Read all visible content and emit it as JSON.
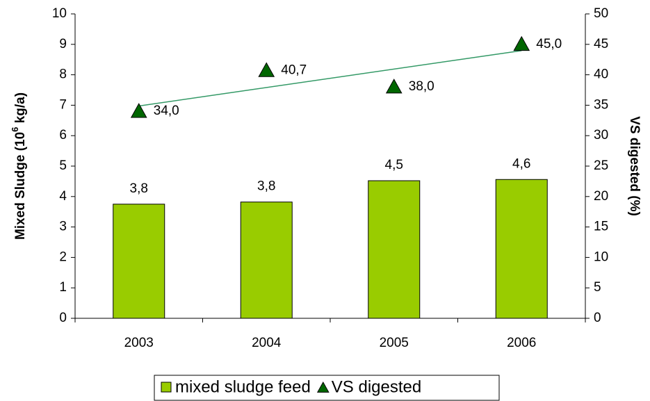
{
  "chart_data": {
    "type": "bar-line",
    "y_label": [
      "Mixed Sludge (10",
      "6",
      " kg/a)"
    ],
    "y2_label": "VS digested (%)",
    "categories": [
      "2003",
      "2004",
      "2005",
      "2006"
    ],
    "series": [
      {
        "name": "mixed sludge feed",
        "type": "bar",
        "color": "#99cc00",
        "values": [
          3.75,
          3.82,
          4.52,
          4.56
        ],
        "value_labels": [
          "3,8",
          "3,8",
          "4,5",
          "4,6"
        ]
      },
      {
        "name": "VS digested",
        "type": "scatter",
        "axis": "y2",
        "color": "#006600",
        "trendline_color": "#339966",
        "trendline": true,
        "values": [
          34.0,
          40.7,
          38.0,
          45.0
        ],
        "value_labels": [
          "34,0",
          "40,7",
          "38,0",
          "45,0"
        ]
      }
    ],
    "ylim": [
      0,
      10
    ],
    "yticks": [
      0,
      1,
      2,
      3,
      4,
      5,
      6,
      7,
      8,
      9,
      10
    ],
    "y2lim": [
      0,
      50
    ],
    "y2ticks": [
      0,
      5,
      10,
      15,
      20,
      25,
      30,
      35,
      40,
      45,
      50
    ],
    "legend": "bottom"
  }
}
